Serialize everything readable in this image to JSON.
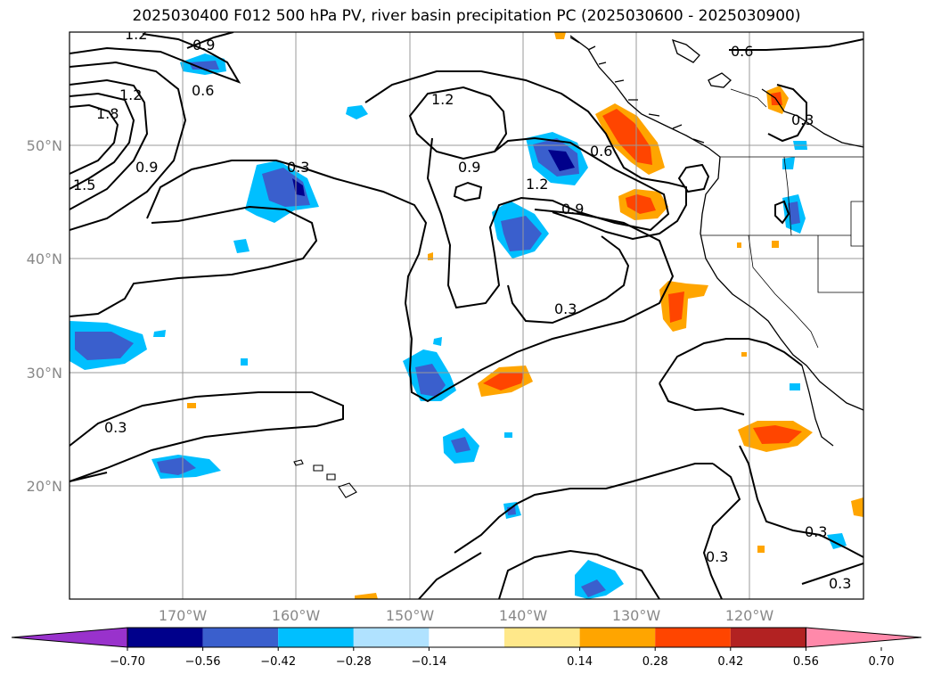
{
  "title": "2025030400 F012 500 hPa PV, river basin precipitation PC (2025030600 - 2025030900)",
  "lat_labels": [
    "50°N",
    "40°N",
    "30°N",
    "20°N"
  ],
  "lon_labels": [
    "170°W",
    "160°W",
    "150°W",
    "140°W",
    "130°W",
    "120°W"
  ],
  "contour_labels": [
    "1.2",
    "0.9",
    "0.6",
    "1.2",
    "1.8",
    "1.5",
    "0.9",
    "0.3",
    "1.2",
    "0.9",
    "0.6",
    "1.2",
    "0.9",
    "0.6",
    "0.3",
    "0.3",
    "0.3",
    "0.3",
    "0.3",
    "0.3"
  ],
  "colorbar": {
    "ticks": [
      "−0.70",
      "−0.56",
      "−0.42",
      "−0.28",
      "−0.14",
      "0.14",
      "0.28",
      "0.42",
      "0.56",
      "0.70"
    ],
    "colors": [
      "#9932cc",
      "#00008b",
      "#3a5fcd",
      "#00bfff",
      "#b0e2ff",
      "#ffffff",
      "#ffe88a",
      "#ffa500",
      "#ff4500",
      "#b22222",
      "#ff89aa"
    ]
  }
}
